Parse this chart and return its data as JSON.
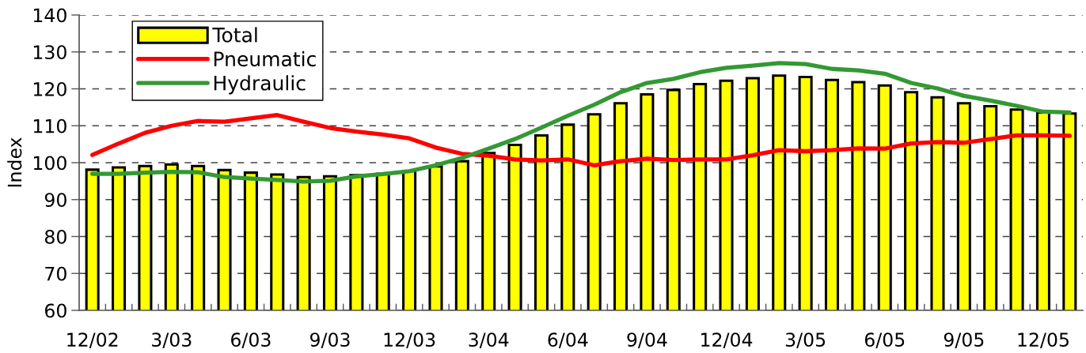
{
  "chart_data": {
    "type": "bar",
    "ylabel": "Index",
    "categories": [
      "12/02",
      null,
      null,
      "3/03",
      null,
      null,
      "6/03",
      null,
      null,
      "9/03",
      null,
      null,
      "12/03",
      null,
      null,
      "3/04",
      null,
      null,
      "6/04",
      null,
      null,
      "9/04",
      null,
      null,
      "12/04",
      null,
      null,
      "3/05",
      null,
      null,
      "6/05",
      null,
      null,
      "9/05",
      null,
      null,
      "12/05",
      null
    ],
    "series": [
      {
        "name": "Total",
        "color": "#ffff00",
        "values": [
          98.1,
          98.7,
          99.1,
          99.5,
          99.1,
          98.0,
          97.3,
          96.8,
          96.1,
          96.3,
          96.6,
          97.0,
          97.7,
          99.0,
          100.4,
          102.6,
          104.8,
          107.4,
          110.3,
          113.1,
          116.1,
          118.5,
          119.7,
          121.3,
          122.2,
          122.9,
          123.6,
          123.2,
          122.4,
          121.8,
          120.9,
          119.1,
          117.7,
          116.1,
          115.3,
          114.4,
          113.6,
          113.3
        ]
      },
      {
        "name": "Pneumatic",
        "type": "line",
        "color": "#ff0000",
        "values": [
          102.1,
          105.2,
          108.1,
          110.0,
          111.3,
          111.1,
          112.0,
          112.9,
          111.1,
          109.4,
          108.4,
          107.6,
          106.6,
          104.1,
          102.4,
          101.9,
          100.9,
          100.6,
          100.9,
          99.3,
          100.4,
          101.1,
          100.7,
          100.9,
          100.9,
          102.0,
          103.4,
          103.1,
          103.4,
          103.9,
          103.8,
          105.2,
          105.6,
          105.4,
          106.4,
          107.4,
          107.4,
          107.3
        ]
      },
      {
        "name": "Hydraulic",
        "type": "line",
        "color": "#339933",
        "values": [
          97.0,
          97.0,
          97.3,
          97.5,
          97.4,
          96.1,
          95.7,
          95.3,
          94.9,
          95.1,
          96.3,
          96.9,
          97.7,
          99.3,
          101.3,
          103.8,
          106.4,
          109.5,
          112.7,
          115.7,
          119.1,
          121.6,
          122.7,
          124.5,
          125.7,
          126.3,
          127.0,
          126.7,
          125.4,
          125.0,
          124.1,
          121.6,
          120.1,
          118.1,
          116.8,
          115.4,
          113.8,
          113.6
        ]
      }
    ],
    "ylim": [
      60,
      140
    ],
    "yticks": [
      60,
      70,
      80,
      90,
      100,
      110,
      120,
      130,
      140
    ],
    "grid": "y",
    "legend": "top left",
    "marker": "none",
    "line_style": "solid"
  }
}
